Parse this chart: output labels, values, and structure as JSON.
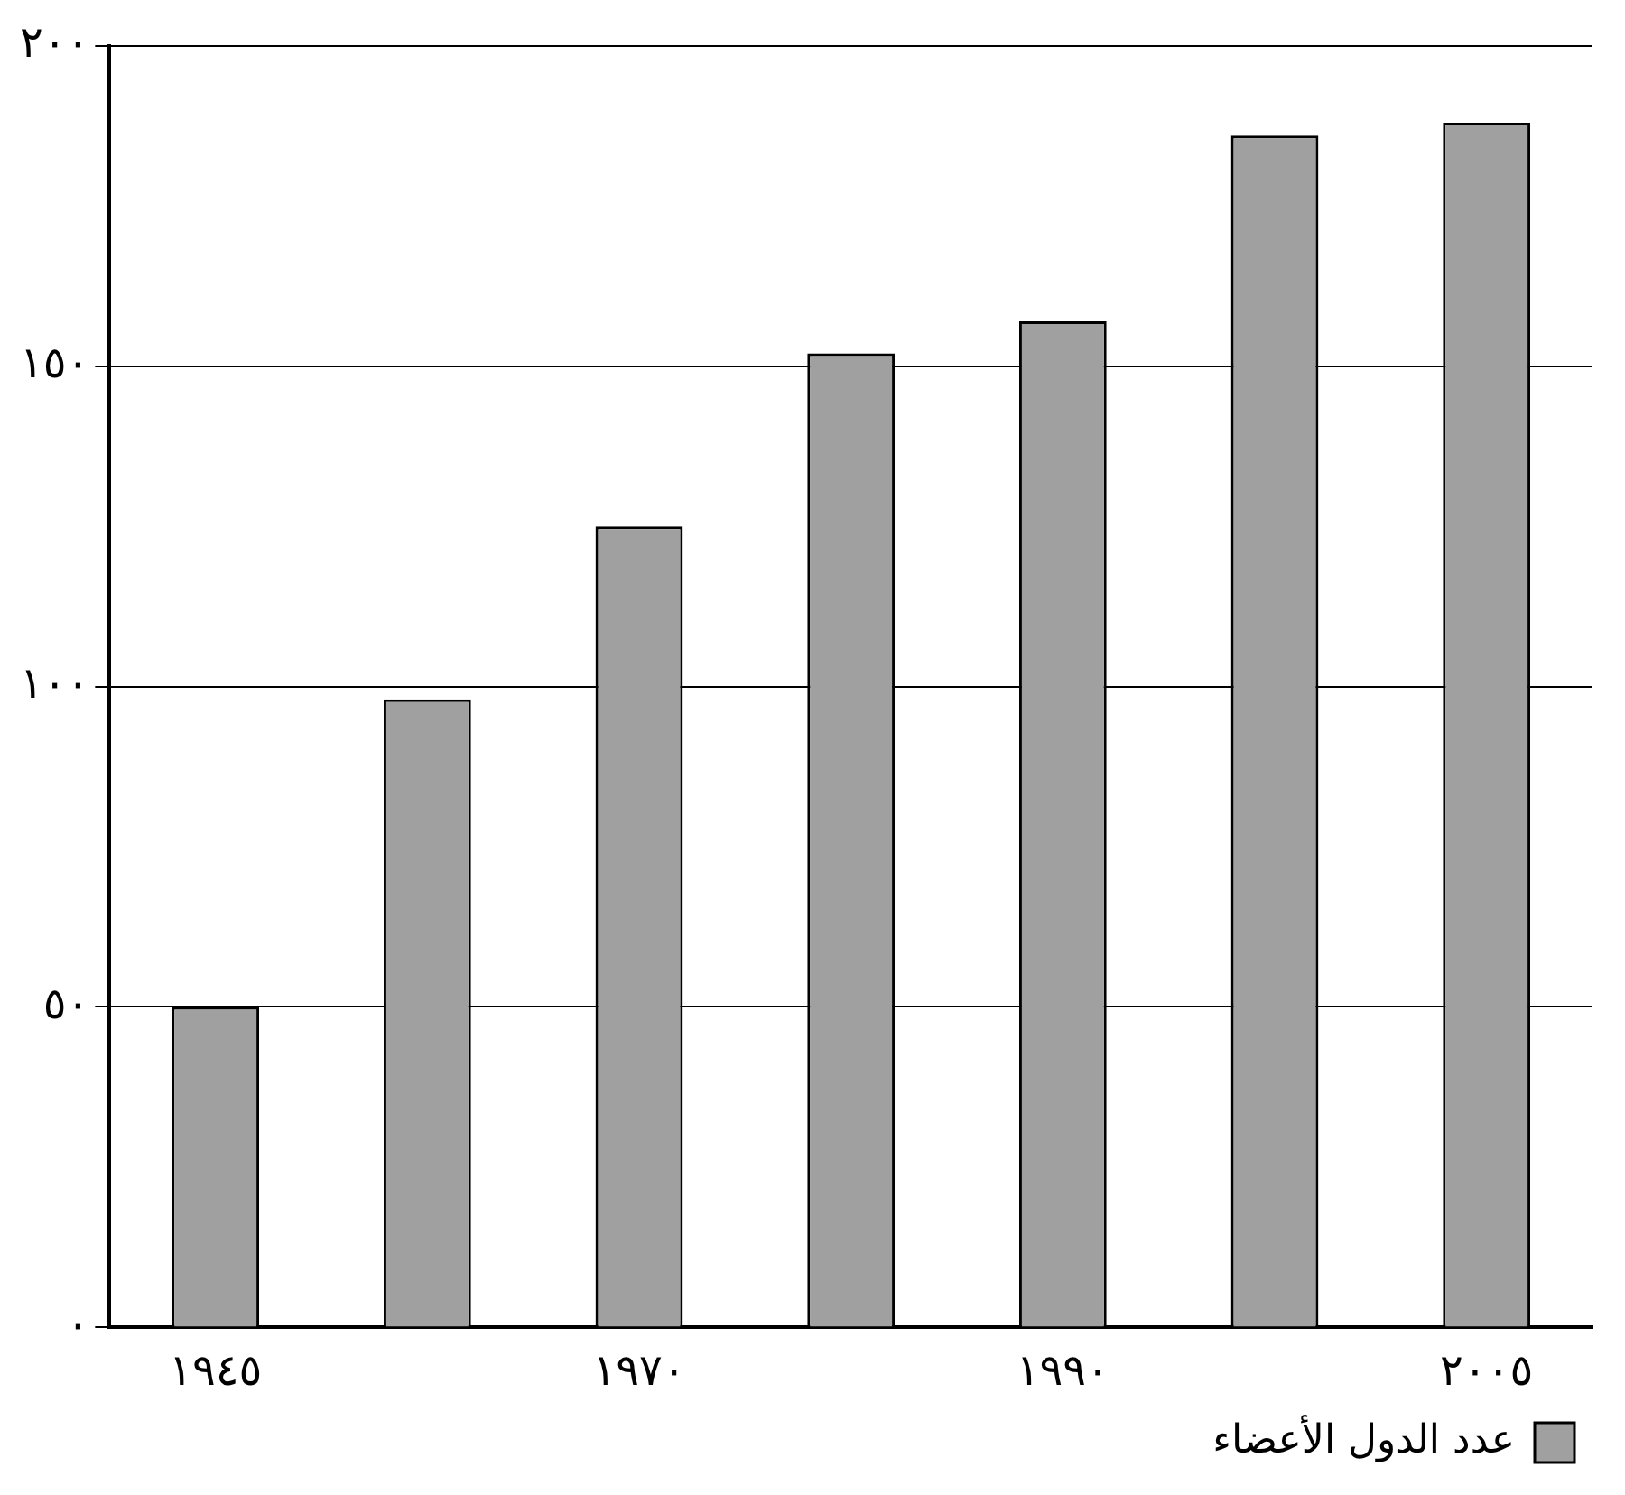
{
  "chart_data": {
    "type": "bar",
    "categories": [
      "١٩٤٥",
      null,
      "١٩٧٠",
      null,
      "١٩٩٠",
      null,
      "٢٠٠٥"
    ],
    "series": [
      {
        "name": "عدد الدول الأعضاء",
        "color": "#a0a0a0",
        "values": [
          50,
          98,
          125,
          152,
          157,
          186,
          188
        ]
      }
    ],
    "ylim": [
      0,
      200
    ],
    "yticks": [
      {
        "value": 0,
        "label": "٠"
      },
      {
        "value": 50,
        "label": "٥٠"
      },
      {
        "value": 100,
        "label": "١٠٠"
      },
      {
        "value": 150,
        "label": "١٥٠"
      },
      {
        "value": 200,
        "label": "٢٠٠"
      }
    ],
    "grid": "y",
    "legend": "bottom right"
  }
}
